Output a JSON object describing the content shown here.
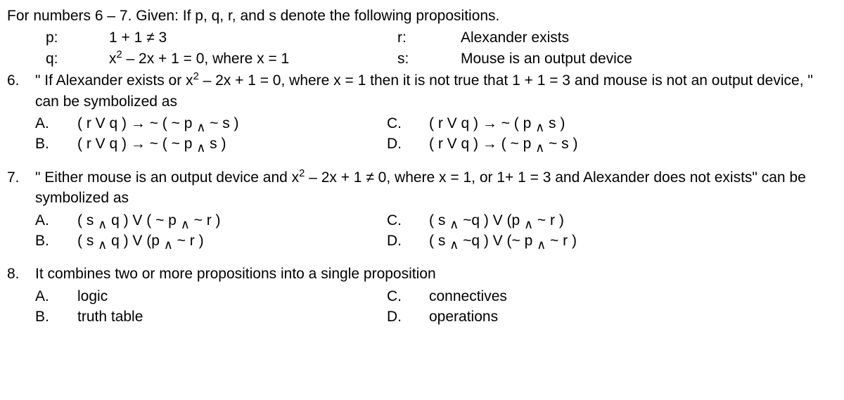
{
  "intro": "For numbers 6 – 7. Given: If p, q, r, and s denote the following propositions.",
  "props": {
    "p": {
      "label": "p:",
      "text": "1 + 1 ≠ 3"
    },
    "r": {
      "label": "r:",
      "text": "Alexander exists"
    },
    "q": {
      "label": "q:",
      "text_html": "x<sup>2</sup> – 2x + 1 = 0, where x = 1"
    },
    "s": {
      "label": "s:",
      "text": "Mouse is an output device"
    }
  },
  "q6": {
    "num": "6.",
    "text_html": "\" If Alexander exists or  x<sup>2</sup> – 2x + 1 = 0, where x = 1 then it is not true that  1 + 1 = 3 and mouse is not an output device, \" can be symbolized as",
    "choices": {
      "A": {
        "label": "A.",
        "text_html": "( r V q )  →  ~ ( ~ p <span class=\"sub\">∧</span> ~ s )"
      },
      "B": {
        "label": "B.",
        "text_html": "( r V q )  →  ~ ( ~ p <span class=\"sub\">∧</span> s )"
      },
      "C": {
        "label": "C.",
        "text_html": "( r V q )  →   ~ (  p <span class=\"sub\">∧</span> s )"
      },
      "D": {
        "label": "D.",
        "text_html": "( r V q )  →  ( ~ p <span class=\"sub\">∧</span> ~ s )"
      }
    }
  },
  "q7": {
    "num": "7.",
    "text_html": "\" Either mouse is an output device and x<sup>2</sup> – 2x + 1 ≠ 0, where x = 1, or 1+ 1 = 3 and Alexander does not exists\" can be symbolized as",
    "choices": {
      "A": {
        "label": "A.",
        "text_html": "( s <span class=\"sub\">∧</span> q ) V ( ~ p <span class=\"sub\">∧</span>  ~ r )"
      },
      "B": {
        "label": "B.",
        "text_html": "( s <span class=\"sub\">∧</span>  q ) V (p <span class=\"sub\">∧</span> ~ r )"
      },
      "C": {
        "label": "C.",
        "text_html": "( s <span class=\"sub\">∧</span> ~q ) V (p <span class=\"sub\">∧</span> ~ r )"
      },
      "D": {
        "label": "D.",
        "text_html": "( s <span class=\"sub\">∧</span> ~q ) V (~ p <span class=\"sub\">∧</span> ~ r )"
      }
    }
  },
  "q8": {
    "num": "8.",
    "text": "It combines two or more propositions into a single proposition",
    "choices": {
      "A": {
        "label": "A.",
        "text": "logic"
      },
      "B": {
        "label": "B.",
        "text": "truth table"
      },
      "C": {
        "label": "C.",
        "text": "connectives"
      },
      "D": {
        "label": "D.",
        "text": "operations"
      }
    }
  }
}
